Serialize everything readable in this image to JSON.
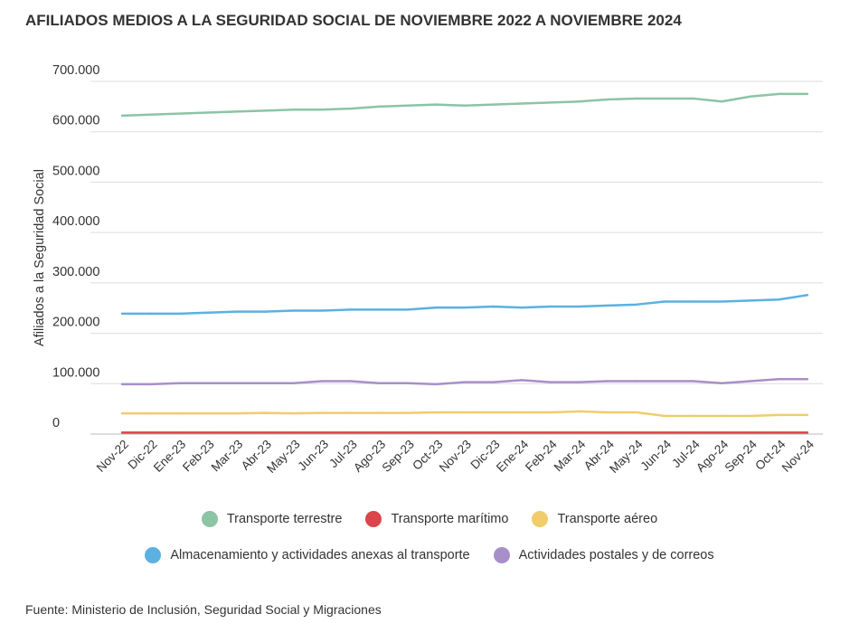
{
  "title": "AFILIADOS MEDIOS A LA SEGURIDAD SOCIAL DE NOVIEMBRE 2022 A NOVIEMBRE 2024",
  "source": "Fuente: Ministerio de Inclusión, Seguridad Social y Migraciones",
  "chart_data": {
    "type": "line",
    "title": "AFILIADOS MEDIOS A LA SEGURIDAD SOCIAL DE NOVIEMBRE 2022 A NOVIEMBRE 2024",
    "xlabel": "",
    "ylabel": "Afiliados a la Seguridad Social",
    "ylim": [
      0,
      700000
    ],
    "yticks": [
      0,
      100000,
      200000,
      300000,
      400000,
      500000,
      600000,
      700000
    ],
    "ytick_labels": [
      "0",
      "100.000",
      "200.000",
      "300.000",
      "400.000",
      "500.000",
      "600.000",
      "700.000"
    ],
    "grid": true,
    "legend_position": "bottom",
    "categories": [
      "Nov-22",
      "Dic-22",
      "Ene-23",
      "Feb-23",
      "Mar-23",
      "Abr-23",
      "May-23",
      "Jun-23",
      "Jul-23",
      "Ago-23",
      "Sep-23",
      "Oct-23",
      "Nov-23",
      "Dic-23",
      "Ene-24",
      "Feb-24",
      "Mar-24",
      "Abr-24",
      "May-24",
      "Jun-24",
      "Jul-24",
      "Ago-24",
      "Sep-24",
      "Oct-24",
      "Nov-24"
    ],
    "series": [
      {
        "name": "Transporte terrestre",
        "color": "#8cc4a4",
        "values": [
          632000,
          634000,
          636000,
          638000,
          640000,
          642000,
          644000,
          644000,
          646000,
          650000,
          652000,
          654000,
          652000,
          654000,
          656000,
          658000,
          660000,
          664000,
          666000,
          666000,
          666000,
          660000,
          670000,
          675000,
          675000
        ]
      },
      {
        "name": "Transporte marítimo",
        "color": "#d9464b",
        "values": [
          3000,
          3000,
          3000,
          3000,
          3000,
          3000,
          3000,
          3000,
          3000,
          3000,
          3000,
          3000,
          3000,
          3000,
          3000,
          3000,
          3000,
          3000,
          3000,
          3000,
          3000,
          3000,
          3000,
          3000,
          3000
        ]
      },
      {
        "name": "Transporte aéreo",
        "color": "#f0cc6a",
        "values": [
          41000,
          41000,
          41000,
          41000,
          41000,
          42000,
          41000,
          42000,
          42000,
          42000,
          42000,
          43000,
          43000,
          43000,
          43000,
          43000,
          45000,
          43000,
          43000,
          36000,
          36000,
          36000,
          36000,
          38000,
          38000
        ]
      },
      {
        "name": "Almacenamiento y actividades anexas al transporte",
        "color": "#5bb1e0",
        "values": [
          239000,
          239000,
          239000,
          241000,
          243000,
          243000,
          245000,
          245000,
          247000,
          247000,
          247000,
          251000,
          251000,
          253000,
          251000,
          253000,
          253000,
          255000,
          257000,
          263000,
          263000,
          263000,
          265000,
          267000,
          276000
        ]
      },
      {
        "name": "Actividades postales y de correos",
        "color": "#a98fc9",
        "values": [
          99000,
          99000,
          101000,
          101000,
          101000,
          101000,
          101000,
          105000,
          105000,
          101000,
          101000,
          99000,
          103000,
          103000,
          107000,
          103000,
          103000,
          105000,
          105000,
          105000,
          105000,
          101000,
          105000,
          109000,
          109000
        ]
      }
    ]
  }
}
